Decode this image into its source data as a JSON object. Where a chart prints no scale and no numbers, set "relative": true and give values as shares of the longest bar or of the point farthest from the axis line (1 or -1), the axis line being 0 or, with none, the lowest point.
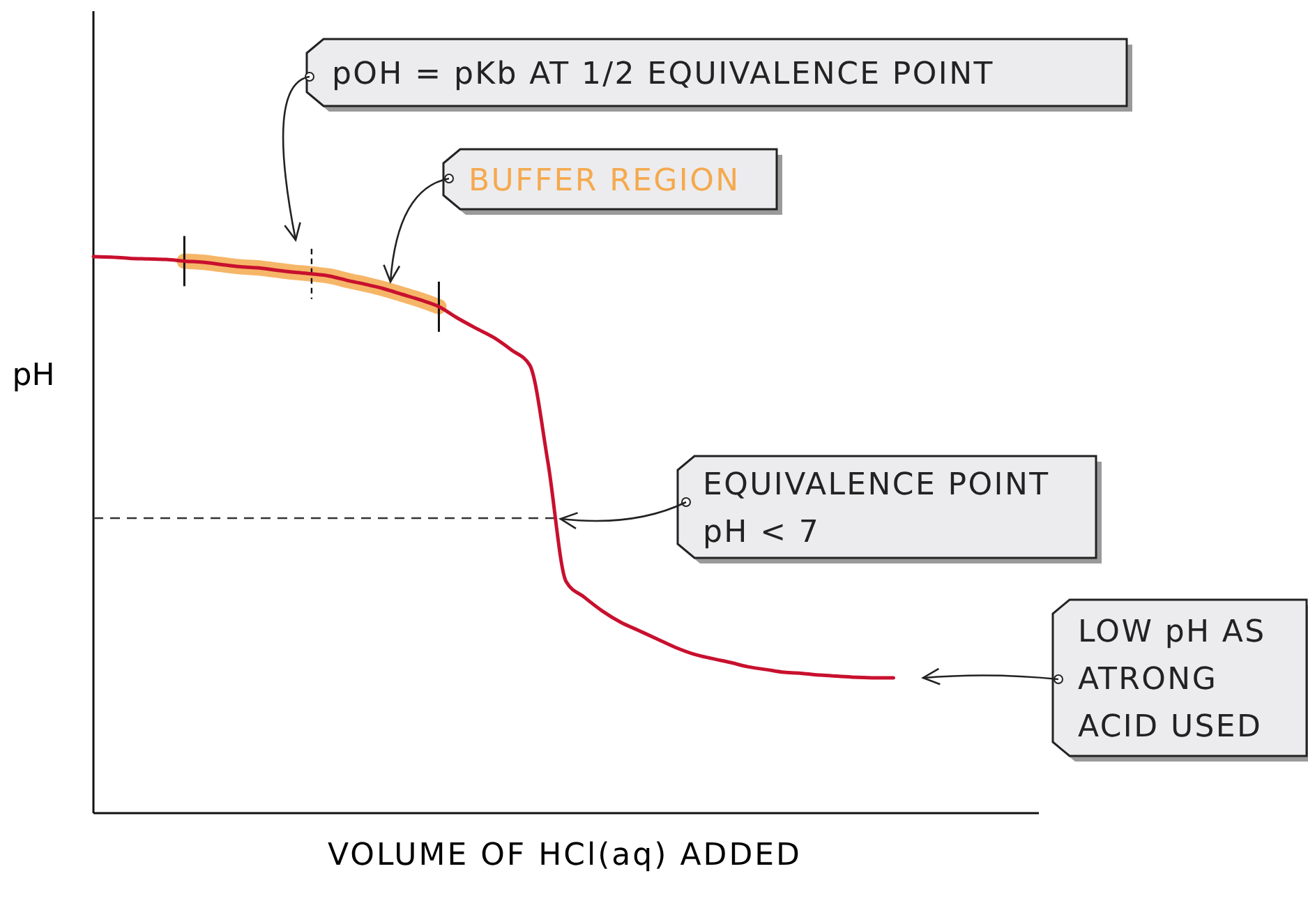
{
  "chart_data": {
    "type": "line",
    "relative": true,
    "xlabel": "VOLUME OF HCl(aq) ADDED",
    "ylabel": "pH",
    "categories": [
      null,
      null,
      null,
      null,
      null,
      null,
      null,
      null,
      null,
      null,
      null,
      null,
      null,
      null,
      null,
      null,
      null,
      null,
      null,
      null,
      null,
      null,
      null,
      null,
      null,
      null,
      null,
      null,
      null,
      null,
      null,
      null,
      null,
      null,
      null,
      null,
      null,
      null,
      null,
      null,
      null,
      null,
      null,
      null,
      null,
      null,
      null,
      null,
      null,
      null,
      null,
      null,
      null
    ],
    "series": [
      {
        "name": "BUFFER REGION",
        "color": "#f5a94e",
        "values": [
          null,
          null,
          null,
          null,
          null,
          0.992,
          0.99,
          0.986,
          0.982,
          0.98,
          0.976,
          0.972,
          0.969,
          0.965,
          0.957,
          0.95,
          0.942,
          0.932,
          0.922,
          0.91,
          null,
          null,
          null,
          null,
          null,
          null,
          null,
          null,
          null,
          null,
          null,
          null,
          null,
          null,
          null,
          null,
          null,
          null,
          null,
          null,
          null,
          null,
          null,
          null,
          null,
          null,
          null,
          null,
          null,
          null,
          null,
          null,
          null
        ]
      },
      {
        "color": "#c8102e",
        "values": [
          1.0,
          0.999,
          0.997,
          0.996,
          0.995,
          0.992,
          0.99,
          0.986,
          0.982,
          0.98,
          0.976,
          0.972,
          0.969,
          0.965,
          0.957,
          0.95,
          0.942,
          0.932,
          0.922,
          0.91,
          0.89,
          0.872,
          0.855,
          0.832,
          0.805,
          0.63,
          0.416,
          0.388,
          0.363,
          0.343,
          0.328,
          0.313,
          0.298,
          0.286,
          0.278,
          0.271,
          0.263,
          0.258,
          0.253,
          0.251,
          0.248,
          0.246,
          0.244,
          0.243,
          0.243,
          null,
          null,
          null,
          null,
          null,
          null,
          null,
          null
        ]
      }
    ],
    "ref_lines": [
      {
        "axis": "y",
        "value": 0.53,
        "label": "EQUIVALENCE POINT\npH < 7",
        "color": "#333333",
        "line_style": "dashed"
      }
    ],
    "annotations": [
      "pOH = pKb AT 1/2 EQUIVALENCE POINT",
      "LOW pH AS\nATRONG\nACID USED"
    ]
  }
}
